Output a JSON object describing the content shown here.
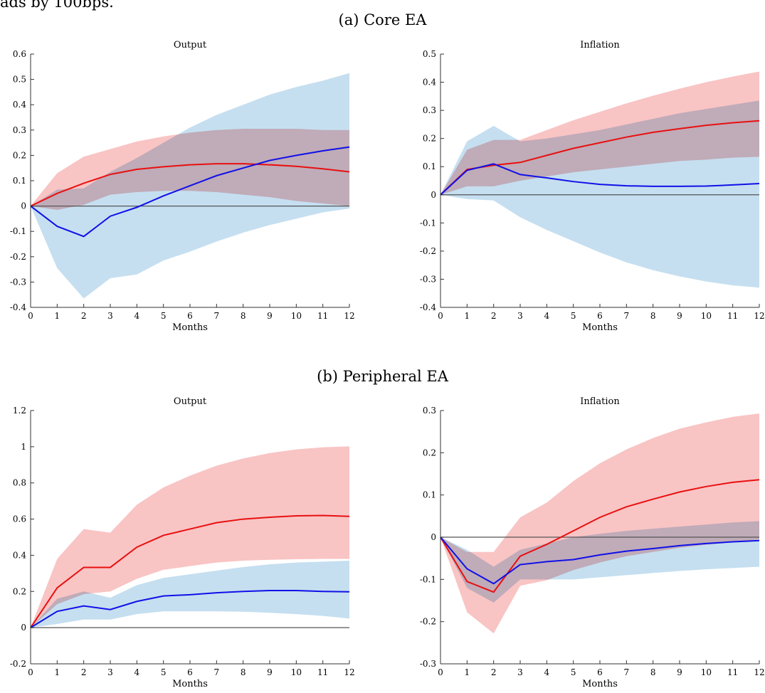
{
  "intro_text": "ads by 100bps.",
  "sections": [
    {
      "title": "(a) Core EA"
    },
    {
      "title": "(b) Peripheral EA"
    }
  ],
  "colors": {
    "red_line": "#e81010",
    "red_band": "#f9c4c4",
    "blue_line": "#1010e8",
    "blue_band": "#c5dff0",
    "overlap_band": "#c8b4c9",
    "zero_line": "#555555",
    "axis": "#333333"
  },
  "chart_data": [
    {
      "type": "line",
      "section": "(a) Core EA",
      "title": "Output",
      "xlabel": "Months",
      "x": [
        0,
        1,
        2,
        3,
        4,
        5,
        6,
        7,
        8,
        9,
        10,
        11,
        12
      ],
      "xlim": [
        0,
        12
      ],
      "ylim": [
        -0.4,
        0.6
      ],
      "yticks": [
        -0.4,
        -0.3,
        -0.2,
        -0.1,
        0,
        0.1,
        0.2,
        0.3,
        0.4,
        0.5,
        0.6
      ],
      "ytick_labels": [
        "-0.4",
        "-0.3",
        "-0.2",
        "-0.1",
        "0",
        "0.1",
        "0.2",
        "0.3",
        "0.4",
        "0.5",
        "0.6"
      ],
      "series": [
        {
          "color": "red",
          "values": [
            0,
            0.05,
            0.09,
            0.125,
            0.145,
            0.155,
            0.163,
            0.167,
            0.167,
            0.163,
            0.157,
            0.147,
            0.135
          ],
          "lower": [
            0,
            -0.015,
            0.005,
            0.045,
            0.055,
            0.06,
            0.06,
            0.055,
            0.045,
            0.035,
            0.02,
            0.01,
            0.0
          ],
          "upper": [
            0,
            0.13,
            0.195,
            0.225,
            0.255,
            0.275,
            0.29,
            0.3,
            0.305,
            0.305,
            0.305,
            0.3,
            0.3
          ]
        },
        {
          "color": "blue",
          "values": [
            0,
            -0.08,
            -0.12,
            -0.04,
            -0.005,
            0.04,
            0.08,
            0.12,
            0.15,
            0.18,
            0.2,
            0.218,
            0.233
          ],
          "lower": [
            0,
            -0.245,
            -0.365,
            -0.285,
            -0.27,
            -0.215,
            -0.18,
            -0.14,
            -0.105,
            -0.075,
            -0.05,
            -0.025,
            -0.01
          ],
          "upper": [
            0,
            0.065,
            0.07,
            0.135,
            0.19,
            0.25,
            0.31,
            0.36,
            0.4,
            0.44,
            0.47,
            0.495,
            0.525
          ]
        }
      ]
    },
    {
      "type": "line",
      "section": "(a) Core EA",
      "title": "Inflation",
      "xlabel": "Months",
      "x": [
        0,
        1,
        2,
        3,
        4,
        5,
        6,
        7,
        8,
        9,
        10,
        11,
        12
      ],
      "xlim": [
        0,
        12
      ],
      "ylim": [
        -0.4,
        0.5
      ],
      "yticks": [
        -0.4,
        -0.3,
        -0.2,
        -0.1,
        0,
        0.1,
        0.2,
        0.3,
        0.4,
        0.5
      ],
      "ytick_labels": [
        "-0.4",
        "-0.3",
        "-0.2",
        "-0.1",
        "0",
        "0.1",
        "0.2",
        "0.3",
        "0.4",
        "0.5"
      ],
      "series": [
        {
          "color": "red",
          "values": [
            0,
            0.09,
            0.105,
            0.115,
            0.14,
            0.165,
            0.185,
            0.205,
            0.222,
            0.235,
            0.247,
            0.256,
            0.263
          ],
          "lower": [
            0,
            0.03,
            0.03,
            0.05,
            0.065,
            0.08,
            0.09,
            0.1,
            0.11,
            0.12,
            0.125,
            0.132,
            0.135
          ],
          "upper": [
            0,
            0.16,
            0.195,
            0.195,
            0.23,
            0.265,
            0.295,
            0.325,
            0.352,
            0.377,
            0.4,
            0.42,
            0.438
          ]
        },
        {
          "color": "blue",
          "values": [
            0,
            0.087,
            0.11,
            0.072,
            0.06,
            0.047,
            0.037,
            0.032,
            0.03,
            0.03,
            0.031,
            0.035,
            0.04
          ],
          "lower": [
            0,
            -0.015,
            -0.02,
            -0.08,
            -0.125,
            -0.165,
            -0.205,
            -0.24,
            -0.268,
            -0.29,
            -0.308,
            -0.322,
            -0.33
          ],
          "upper": [
            0,
            0.19,
            0.245,
            0.19,
            0.2,
            0.215,
            0.23,
            0.25,
            0.27,
            0.29,
            0.305,
            0.32,
            0.335
          ]
        }
      ]
    },
    {
      "type": "line",
      "section": "(b) Peripheral EA",
      "title": "Output",
      "xlabel": "Months",
      "x": [
        0,
        1,
        2,
        3,
        4,
        5,
        6,
        7,
        8,
        9,
        10,
        11,
        12
      ],
      "xlim": [
        0,
        12
      ],
      "ylim": [
        -0.2,
        1.2
      ],
      "yticks": [
        -0.2,
        0,
        0.2,
        0.4,
        0.6,
        0.8,
        1,
        1.2
      ],
      "ytick_labels": [
        "-0.2",
        "0",
        "0.2",
        "0.4",
        "0.6",
        "0.8",
        "1",
        "1.2"
      ],
      "series": [
        {
          "color": "red",
          "values": [
            0,
            0.22,
            0.333,
            0.333,
            0.445,
            0.51,
            0.545,
            0.58,
            0.6,
            0.61,
            0.618,
            0.62,
            0.615
          ],
          "lower": [
            0,
            0.13,
            0.185,
            0.2,
            0.27,
            0.32,
            0.34,
            0.36,
            0.37,
            0.375,
            0.378,
            0.38,
            0.38
          ],
          "upper": [
            0,
            0.38,
            0.545,
            0.525,
            0.68,
            0.775,
            0.84,
            0.895,
            0.935,
            0.965,
            0.985,
            0.997,
            1.002
          ]
        },
        {
          "color": "blue",
          "values": [
            0,
            0.09,
            0.12,
            0.1,
            0.145,
            0.175,
            0.182,
            0.193,
            0.2,
            0.205,
            0.205,
            0.2,
            0.198
          ],
          "lower": [
            0,
            0.02,
            0.045,
            0.045,
            0.075,
            0.09,
            0.09,
            0.09,
            0.088,
            0.082,
            0.075,
            0.065,
            0.05
          ],
          "upper": [
            0,
            0.16,
            0.2,
            0.165,
            0.235,
            0.275,
            0.295,
            0.315,
            0.335,
            0.35,
            0.36,
            0.365,
            0.37
          ]
        }
      ]
    },
    {
      "type": "line",
      "section": "(b) Peripheral EA",
      "title": "Inflation",
      "xlabel": "Months",
      "x": [
        0,
        1,
        2,
        3,
        4,
        5,
        6,
        7,
        8,
        9,
        10,
        11,
        12
      ],
      "xlim": [
        0,
        12
      ],
      "ylim": [
        -0.3,
        0.3
      ],
      "yticks": [
        -0.3,
        -0.2,
        -0.1,
        0,
        0.1,
        0.2,
        0.3
      ],
      "ytick_labels": [
        "-0.3",
        "-0.2",
        "-0.1",
        "0",
        "0.1",
        "0.2",
        "0.3"
      ],
      "series": [
        {
          "color": "red",
          "values": [
            0,
            -0.105,
            -0.13,
            -0.045,
            -0.017,
            0.015,
            0.047,
            0.072,
            0.09,
            0.107,
            0.12,
            0.13,
            0.136
          ],
          "lower": [
            0,
            -0.178,
            -0.228,
            -0.115,
            -0.102,
            -0.078,
            -0.06,
            -0.045,
            -0.035,
            -0.025,
            -0.018,
            -0.012,
            -0.005
          ],
          "upper": [
            0,
            -0.035,
            -0.035,
            0.047,
            0.082,
            0.133,
            0.175,
            0.208,
            0.235,
            0.257,
            0.272,
            0.285,
            0.293
          ]
        },
        {
          "color": "blue",
          "values": [
            0,
            -0.075,
            -0.11,
            -0.065,
            -0.058,
            -0.053,
            -0.042,
            -0.033,
            -0.027,
            -0.02,
            -0.015,
            -0.011,
            -0.008
          ],
          "lower": [
            0,
            -0.12,
            -0.155,
            -0.1,
            -0.1,
            -0.1,
            -0.095,
            -0.09,
            -0.085,
            -0.08,
            -0.076,
            -0.073,
            -0.07
          ],
          "upper": [
            0,
            -0.03,
            -0.07,
            -0.03,
            -0.015,
            0.0,
            0.008,
            0.015,
            0.02,
            0.025,
            0.03,
            0.035,
            0.038
          ]
        }
      ]
    }
  ]
}
